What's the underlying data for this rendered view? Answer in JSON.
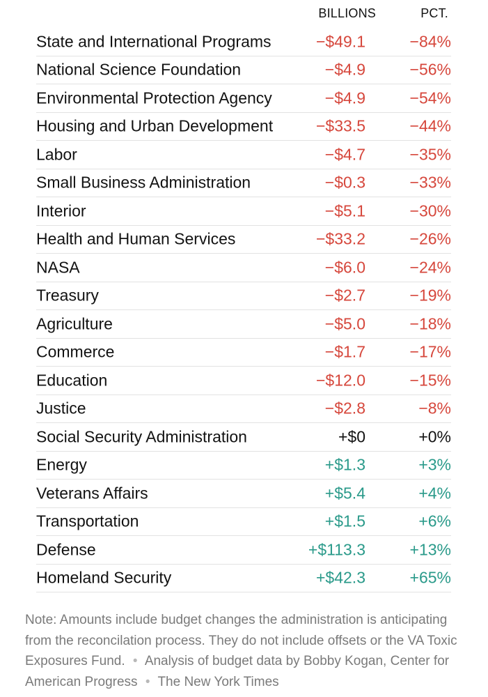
{
  "chart_data": {
    "type": "table",
    "columns": [
      "",
      "BILLIONS",
      "PCT."
    ],
    "rows": [
      {
        "agency": "State and International Programs",
        "billions": "−$49.1",
        "pct": "−84%",
        "value_billions": -49.1,
        "value_pct": -84
      },
      {
        "agency": "National Science Foundation",
        "billions": "−$4.9",
        "pct": "−56%",
        "value_billions": -4.9,
        "value_pct": -56
      },
      {
        "agency": "Environmental Protection Agency",
        "billions": "−$4.9",
        "pct": "−54%",
        "value_billions": -4.9,
        "value_pct": -54
      },
      {
        "agency": "Housing and Urban Development",
        "billions": "−$33.5",
        "pct": "−44%",
        "value_billions": -33.5,
        "value_pct": -44
      },
      {
        "agency": "Labor",
        "billions": "−$4.7",
        "pct": "−35%",
        "value_billions": -4.7,
        "value_pct": -35
      },
      {
        "agency": "Small Business Administration",
        "billions": "−$0.3",
        "pct": "−33%",
        "value_billions": -0.3,
        "value_pct": -33
      },
      {
        "agency": "Interior",
        "billions": "−$5.1",
        "pct": "−30%",
        "value_billions": -5.1,
        "value_pct": -30
      },
      {
        "agency": "Health and Human Services",
        "billions": "−$33.2",
        "pct": "−26%",
        "value_billions": -33.2,
        "value_pct": -26
      },
      {
        "agency": "NASA",
        "billions": "−$6.0",
        "pct": "−24%",
        "value_billions": -6.0,
        "value_pct": -24
      },
      {
        "agency": "Treasury",
        "billions": "−$2.7",
        "pct": "−19%",
        "value_billions": -2.7,
        "value_pct": -19
      },
      {
        "agency": "Agriculture",
        "billions": "−$5.0",
        "pct": "−18%",
        "value_billions": -5.0,
        "value_pct": -18
      },
      {
        "agency": "Commerce",
        "billions": "−$1.7",
        "pct": "−17%",
        "value_billions": -1.7,
        "value_pct": -17
      },
      {
        "agency": "Education",
        "billions": "−$12.0",
        "pct": "−15%",
        "value_billions": -12.0,
        "value_pct": -15
      },
      {
        "agency": "Justice",
        "billions": "−$2.8",
        "pct": "−8%",
        "value_billions": -2.8,
        "value_pct": -8
      },
      {
        "agency": "Social Security Administration",
        "billions": "+$0",
        "pct": "+0%",
        "value_billions": 0,
        "value_pct": 0
      },
      {
        "agency": "Energy",
        "billions": "+$1.3",
        "pct": "+3%",
        "value_billions": 1.3,
        "value_pct": 3
      },
      {
        "agency": "Veterans Affairs",
        "billions": "+$5.4",
        "pct": "+4%",
        "value_billions": 5.4,
        "value_pct": 4
      },
      {
        "agency": "Transportation",
        "billions": "+$1.5",
        "pct": "+6%",
        "value_billions": 1.5,
        "value_pct": 6
      },
      {
        "agency": "Defense",
        "billions": "+$113.3",
        "pct": "+13%",
        "value_billions": 113.3,
        "value_pct": 13
      },
      {
        "agency": "Homeland Security",
        "billions": "+$42.3",
        "pct": "+65%",
        "value_billions": 42.3,
        "value_pct": 65
      }
    ],
    "colors": {
      "negative": "#d6473c",
      "positive": "#2a9a8a",
      "neutral": "#121212"
    }
  },
  "note": {
    "text": "Note: Amounts include budget changes the administration is anticipating from the reconcilation process. They do not include offsets or the VA Toxic Exposures Fund.",
    "separator": "•",
    "analysis": "Analysis of budget data by Bobby Kogan, Center for American Progress",
    "source": "The New York Times"
  }
}
